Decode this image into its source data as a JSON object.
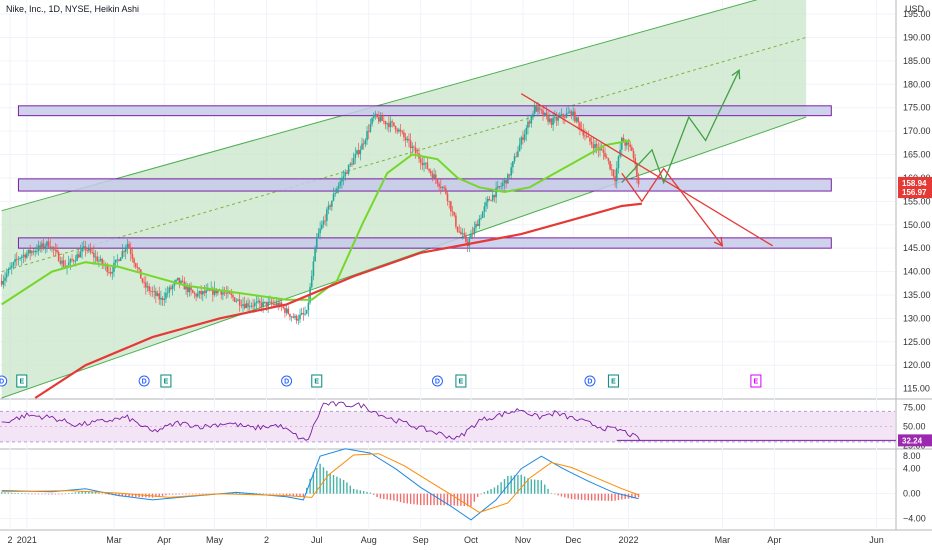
{
  "header": {
    "title": "Nike, Inc., 1D, NYSE, Heikin Ashi",
    "currency": "USD"
  },
  "colors": {
    "up": "#26a69a",
    "down": "#ef5350",
    "channel": "#4caf50",
    "channel_fill": "#c8e6c9",
    "zone_fill": "#c5cae9",
    "zone_stroke": "#7b1fa2",
    "ma50": "#76d72b",
    "ma200": "#e53935",
    "rsi": "#7b1fa2",
    "rsi_band": "#f3e5f5",
    "macd": "#1e88e5",
    "signal": "#fb8c00",
    "projection_up": "#43a047",
    "projection_down": "#e53935",
    "price_tag": "#e53935",
    "rsi_tag": "#9c27b0"
  },
  "chart_data": [
    {
      "type": "candlestick",
      "name": "price",
      "ylim": [
        113,
        198
      ],
      "y_ticks": [
        115,
        120,
        125,
        130,
        135,
        140,
        145,
        150,
        155,
        160,
        165,
        170,
        175,
        180,
        185,
        190,
        195
      ],
      "x_ticks": [
        {
          "label": "2",
          "day": -5
        },
        {
          "label": "2021",
          "day": 5
        },
        {
          "label": "Mar",
          "day": 57
        },
        {
          "label": "Apr",
          "day": 87
        },
        {
          "label": "May",
          "day": 117
        },
        {
          "label": "2",
          "day": 148
        },
        {
          "label": "Jul",
          "day": 178
        },
        {
          "label": "Aug",
          "day": 209
        },
        {
          "label": "Sep",
          "day": 240
        },
        {
          "label": "Oct",
          "day": 270
        },
        {
          "label": "Nov",
          "day": 301
        },
        {
          "label": "Dec",
          "day": 331
        },
        {
          "label": "2022",
          "day": 364
        },
        {
          "label": "Mar",
          "day": 420
        },
        {
          "label": "Apr",
          "day": 451
        },
        {
          "label": "Jun",
          "day": 512
        }
      ],
      "key_points": [
        [
          -10,
          138
        ],
        [
          0,
          143
        ],
        [
          18,
          146
        ],
        [
          28,
          141
        ],
        [
          40,
          145
        ],
        [
          55,
          140
        ],
        [
          65,
          146
        ],
        [
          75,
          137
        ],
        [
          85,
          134
        ],
        [
          95,
          138
        ],
        [
          105,
          135
        ],
        [
          120,
          136
        ],
        [
          135,
          133
        ],
        [
          155,
          133
        ],
        [
          165,
          130
        ],
        [
          172,
          131
        ],
        [
          178,
          147
        ],
        [
          190,
          158
        ],
        [
          205,
          167
        ],
        [
          212,
          173
        ],
        [
          225,
          171
        ],
        [
          240,
          164
        ],
        [
          255,
          157
        ],
        [
          262,
          149
        ],
        [
          268,
          146
        ],
        [
          280,
          155
        ],
        [
          292,
          160
        ],
        [
          300,
          168
        ],
        [
          308,
          175
        ],
        [
          318,
          172
        ],
        [
          330,
          174
        ],
        [
          340,
          168
        ],
        [
          350,
          165
        ],
        [
          356,
          160
        ],
        [
          360,
          168
        ],
        [
          366,
          166
        ],
        [
          370,
          159
        ]
      ],
      "ma50": [
        [
          -10,
          133
        ],
        [
          20,
          140
        ],
        [
          40,
          142
        ],
        [
          60,
          141
        ],
        [
          80,
          139
        ],
        [
          100,
          137
        ],
        [
          120,
          136
        ],
        [
          140,
          135
        ],
        [
          160,
          134
        ],
        [
          175,
          134
        ],
        [
          190,
          138
        ],
        [
          205,
          150
        ],
        [
          220,
          161
        ],
        [
          235,
          165
        ],
        [
          250,
          164
        ],
        [
          262,
          160
        ],
        [
          275,
          158
        ],
        [
          290,
          157
        ],
        [
          305,
          158
        ],
        [
          320,
          161
        ],
        [
          335,
          164
        ],
        [
          350,
          167
        ],
        [
          365,
          168
        ]
      ],
      "ma200": [
        [
          10,
          113
        ],
        [
          40,
          120
        ],
        [
          80,
          126
        ],
        [
          120,
          130
        ],
        [
          160,
          133
        ],
        [
          200,
          139
        ],
        [
          240,
          144
        ],
        [
          270,
          146
        ],
        [
          300,
          148
        ],
        [
          330,
          151
        ],
        [
          360,
          154
        ],
        [
          372,
          154.5
        ]
      ],
      "channel": {
        "start_day": -10,
        "end_day": 470,
        "upper": [
          153,
          201
        ],
        "mid": [
          140,
          190
        ],
        "lower": [
          113,
          173
        ]
      },
      "zones": [
        {
          "y1": 173.3,
          "y2": 175.4,
          "x1": 0,
          "x2": 485
        },
        {
          "y1": 157.2,
          "y2": 159.8,
          "x1": 0,
          "x2": 485
        },
        {
          "y1": 145.0,
          "y2": 147.2,
          "x1": 0,
          "x2": 485
        }
      ],
      "trendline": [
        [
          300,
          178
        ],
        [
          450,
          145.5
        ]
      ],
      "projection_up": [
        [
          360,
          159
        ],
        [
          378,
          166
        ],
        [
          385,
          159
        ],
        [
          400,
          173
        ],
        [
          410,
          168
        ],
        [
          430,
          183
        ]
      ],
      "projection_down": [
        [
          360,
          161
        ],
        [
          372,
          155
        ],
        [
          385,
          162
        ],
        [
          420,
          145.5
        ]
      ],
      "events": [
        {
          "label": "D",
          "day": -10
        },
        {
          "label": "E",
          "day": 2
        },
        {
          "label": "D",
          "day": 75
        },
        {
          "label": "E",
          "day": 88
        },
        {
          "label": "D",
          "day": 160
        },
        {
          "label": "E",
          "day": 178
        },
        {
          "label": "D",
          "day": 250
        },
        {
          "label": "E",
          "day": 264
        },
        {
          "label": "D",
          "day": 341
        },
        {
          "label": "E",
          "day": 355
        },
        {
          "label": "E",
          "day": 440
        }
      ],
      "last_price": "158.94",
      "ma_value": "156.97"
    },
    {
      "type": "line",
      "name": "rsi",
      "ylim": [
        22,
        85
      ],
      "y_ticks": [
        25,
        50,
        75
      ],
      "upper_band": 70,
      "lower_band": 30,
      "key_points": [
        [
          -10,
          55
        ],
        [
          5,
          65
        ],
        [
          20,
          62
        ],
        [
          35,
          52
        ],
        [
          50,
          57
        ],
        [
          65,
          62
        ],
        [
          80,
          43
        ],
        [
          95,
          55
        ],
        [
          110,
          50
        ],
        [
          125,
          55
        ],
        [
          140,
          48
        ],
        [
          155,
          52
        ],
        [
          172,
          30
        ],
        [
          182,
          80
        ],
        [
          205,
          78
        ],
        [
          220,
          62
        ],
        [
          240,
          48
        ],
        [
          262,
          34
        ],
        [
          275,
          58
        ],
        [
          300,
          73
        ],
        [
          310,
          62
        ],
        [
          320,
          68
        ],
        [
          335,
          58
        ],
        [
          350,
          48
        ],
        [
          360,
          45
        ],
        [
          372,
          32
        ]
      ],
      "level_line": 32,
      "last_value": "32.24"
    },
    {
      "type": "macd",
      "name": "macd",
      "ylim": [
        -5.5,
        7
      ],
      "y_ticks": [
        -4,
        0,
        4,
        8
      ],
      "tick_labels": [
        "−4.00",
        "0.00",
        "4.00",
        "8.00"
      ],
      "macd_points": [
        [
          -10,
          0.5
        ],
        [
          20,
          0.3
        ],
        [
          40,
          0.8
        ],
        [
          60,
          -0.3
        ],
        [
          80,
          -1
        ],
        [
          100,
          -0.5
        ],
        [
          130,
          0.2
        ],
        [
          160,
          -0.5
        ],
        [
          170,
          -1
        ],
        [
          180,
          6
        ],
        [
          195,
          7.2
        ],
        [
          210,
          6.5
        ],
        [
          225,
          4
        ],
        [
          240,
          1
        ],
        [
          258,
          -2
        ],
        [
          270,
          -4.2
        ],
        [
          285,
          -1
        ],
        [
          300,
          4
        ],
        [
          312,
          6
        ],
        [
          325,
          4
        ],
        [
          340,
          2
        ],
        [
          355,
          0.2
        ],
        [
          370,
          -0.8
        ]
      ],
      "signal_points": [
        [
          -10,
          0.3
        ],
        [
          30,
          0.5
        ],
        [
          60,
          0.1
        ],
        [
          90,
          -0.6
        ],
        [
          120,
          0
        ],
        [
          160,
          -0.3
        ],
        [
          175,
          -0.6
        ],
        [
          185,
          3
        ],
        [
          200,
          6.2
        ],
        [
          215,
          6.4
        ],
        [
          230,
          4.5
        ],
        [
          245,
          2
        ],
        [
          262,
          -0.8
        ],
        [
          275,
          -3
        ],
        [
          292,
          -1.5
        ],
        [
          305,
          2.5
        ],
        [
          318,
          5
        ],
        [
          330,
          4.2
        ],
        [
          345,
          2.5
        ],
        [
          360,
          0.8
        ],
        [
          370,
          -0.2
        ]
      ]
    }
  ]
}
